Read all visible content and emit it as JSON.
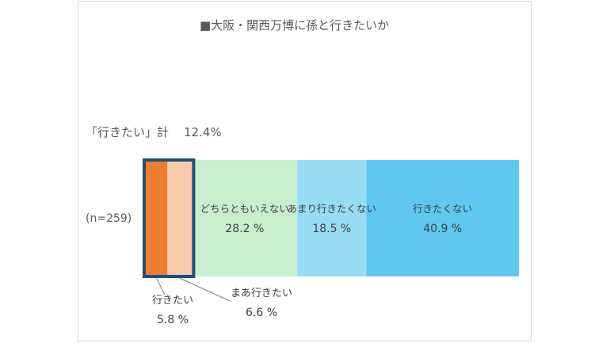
{
  "chart_data": {
    "type": "bar",
    "orientation": "horizontal-stacked-100",
    "title": "■大阪・関西万博に孫と行きたいか",
    "sample_label": "(n=259)",
    "summary_label": "「行きたい」計",
    "summary_value": "12.4%",
    "categories": [
      "(n=259)"
    ],
    "series": [
      {
        "name": "行きたい",
        "value": 5.8,
        "value_label": "5.8 %",
        "color": "#ed7d31"
      },
      {
        "name": "まあ行きたい",
        "value": 6.6,
        "value_label": "6.6 %",
        "color": "#f8cbad"
      },
      {
        "name": "どちらともいえない",
        "value": 28.2,
        "value_label": "28.2 %",
        "color": "#c6efce"
      },
      {
        "name": "あまり行きたくない",
        "value": 18.5,
        "value_label": "18.5 %",
        "color": "#97dcf5"
      },
      {
        "name": "行きたくない",
        "value": 40.9,
        "value_label": "40.9 %",
        "color": "#5ec8f0"
      }
    ],
    "highlight_color": "#1f4e79",
    "xlim": [
      0,
      100
    ],
    "grid": false,
    "legend": "none"
  }
}
